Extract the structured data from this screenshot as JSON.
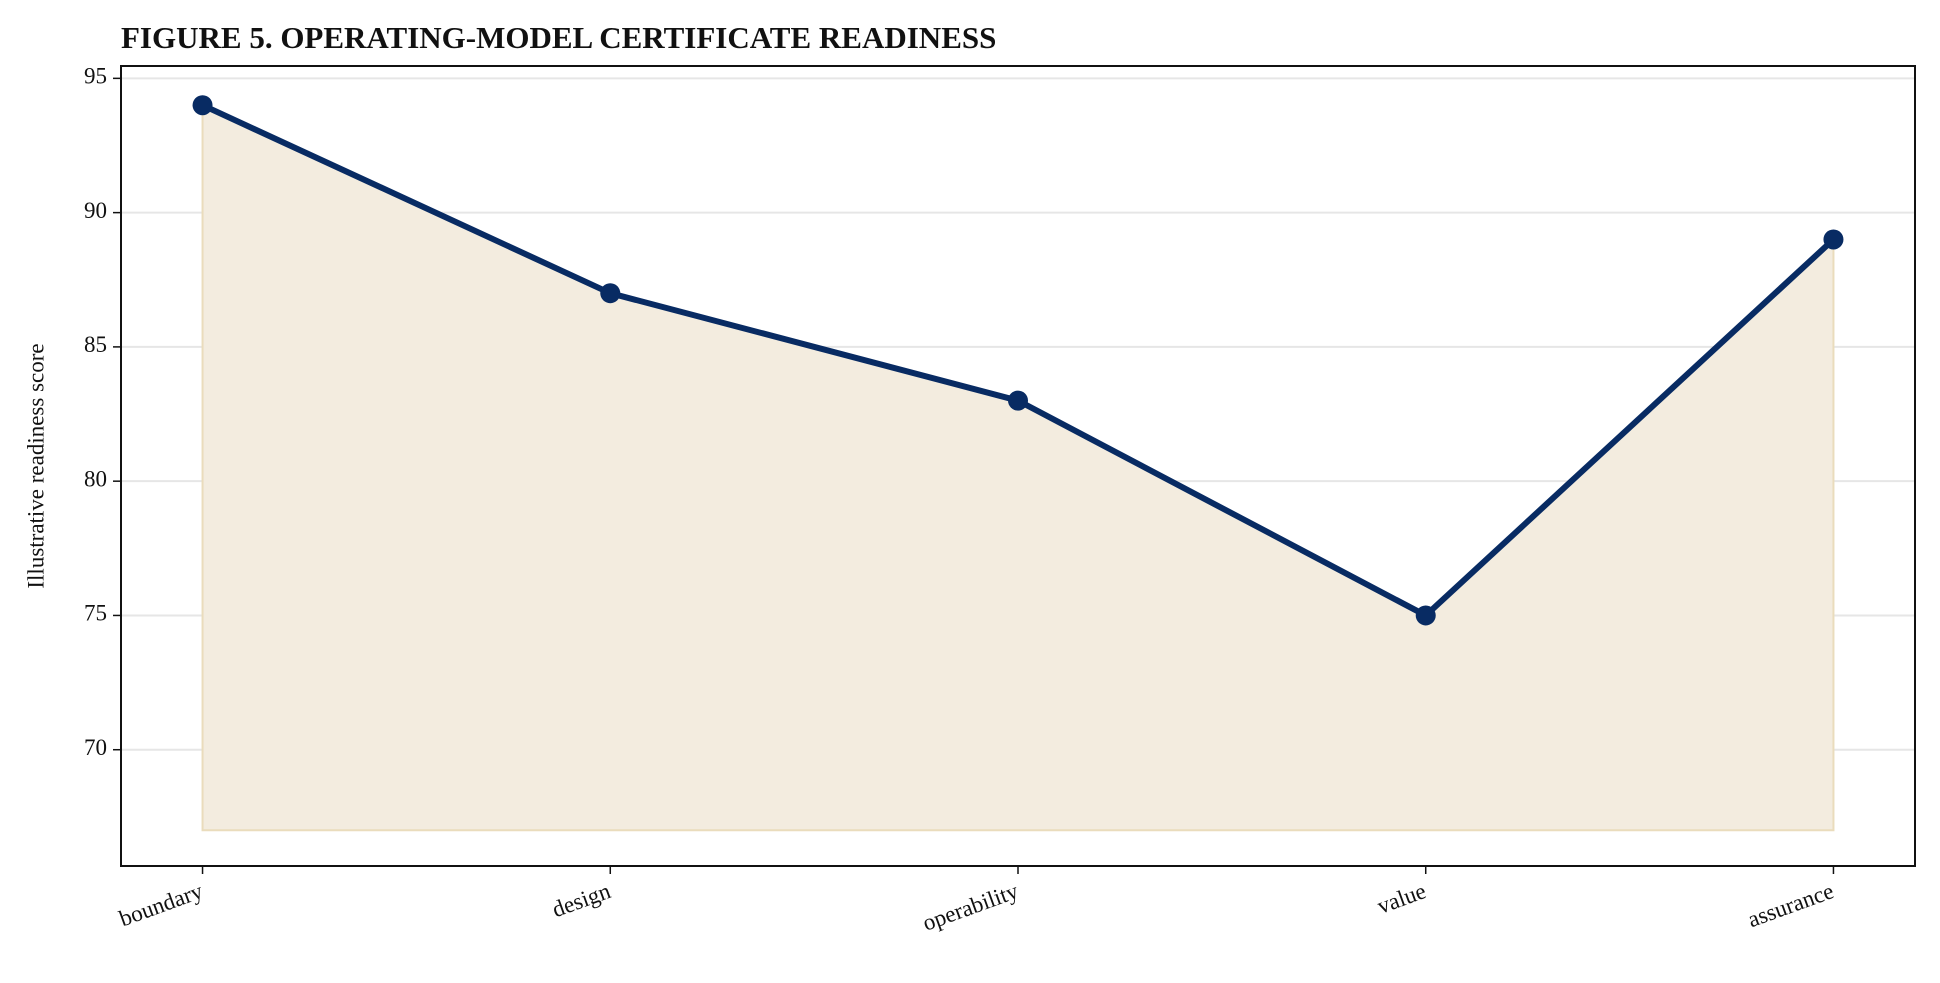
{
  "chart_data": {
    "type": "line",
    "title": "FIGURE 5. OPERATING-MODEL CERTIFICATE READINESS",
    "y_label": "Illustrative readiness score",
    "categories": [
      "boundary",
      "design",
      "operability",
      "value",
      "assurance"
    ],
    "values": [
      94,
      87,
      83,
      75,
      89
    ],
    "color": "#082b63",
    "fill_color": "#f3ecdf",
    "area_baseline": 67,
    "ylim": [
      65.67,
      95.46
    ],
    "yticks": [
      70,
      75,
      80,
      85,
      90,
      95
    ],
    "grid": true
  }
}
